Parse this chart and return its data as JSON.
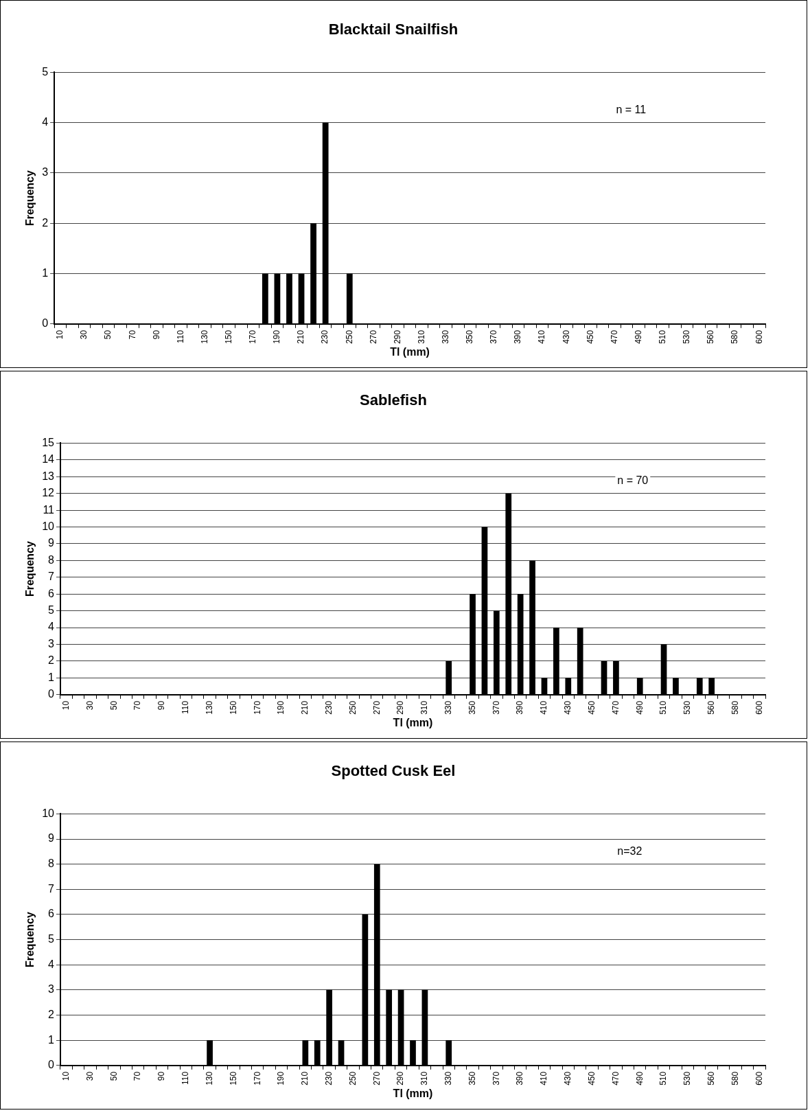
{
  "chart_data": [
    {
      "type": "bar",
      "title": "Blacktail Snailfish",
      "xlabel": "Tl (mm)",
      "ylabel": "Frequency",
      "categories": [
        "10",
        null,
        "30",
        null,
        "50",
        null,
        "70",
        null,
        "90",
        null,
        "110",
        null,
        "130",
        null,
        "150",
        null,
        "170",
        null,
        "190",
        null,
        "210",
        null,
        "230",
        null,
        "250",
        null,
        "270",
        null,
        "290",
        null,
        "310",
        null,
        "330",
        null,
        "350",
        null,
        "370",
        null,
        "390",
        null,
        "410",
        null,
        "430",
        null,
        "450",
        null,
        "470",
        null,
        "490",
        null,
        "510",
        null,
        "530",
        null,
        "560",
        null,
        "580",
        null,
        "600"
      ],
      "values": [
        0,
        0,
        0,
        0,
        0,
        0,
        0,
        0,
        0,
        0,
        0,
        0,
        0,
        0,
        0,
        0,
        0,
        1,
        1,
        1,
        1,
        2,
        4,
        0,
        1,
        0,
        0,
        0,
        0,
        0,
        0,
        0,
        0,
        0,
        0,
        0,
        0,
        0,
        0,
        0,
        0,
        0,
        0,
        0,
        0,
        0,
        0,
        0,
        0,
        0,
        0,
        0,
        0,
        0,
        0,
        0,
        0,
        0,
        0
      ],
      "color": "#000000",
      "ylim": [
        0,
        5
      ],
      "yticks": [
        0,
        1,
        2,
        3,
        4,
        5
      ],
      "grid": "y",
      "annotations": [
        "n = 11"
      ]
    },
    {
      "type": "bar",
      "title": "Sablefish",
      "xlabel": "Tl (mm)",
      "ylabel": "Frequency",
      "categories": [
        "10",
        null,
        "30",
        null,
        "50",
        null,
        "70",
        null,
        "90",
        null,
        "110",
        null,
        "130",
        null,
        "150",
        null,
        "170",
        null,
        "190",
        null,
        "210",
        null,
        "230",
        null,
        "250",
        null,
        "270",
        null,
        "290",
        null,
        "310",
        null,
        "330",
        null,
        "350",
        null,
        "370",
        null,
        "390",
        null,
        "410",
        null,
        "430",
        null,
        "450",
        null,
        "470",
        null,
        "490",
        null,
        "510",
        null,
        "530",
        null,
        "560",
        null,
        "580",
        null,
        "600"
      ],
      "values": [
        0,
        0,
        0,
        0,
        0,
        0,
        0,
        0,
        0,
        0,
        0,
        0,
        0,
        0,
        0,
        0,
        0,
        0,
        0,
        0,
        0,
        0,
        0,
        0,
        0,
        0,
        0,
        0,
        0,
        0,
        0,
        0,
        2,
        0,
        6,
        10,
        5,
        12,
        6,
        8,
        1,
        4,
        1,
        4,
        0,
        2,
        2,
        0,
        1,
        0,
        3,
        1,
        0,
        1,
        1,
        0,
        0,
        0,
        0
      ],
      "color": "#000000",
      "ylim": [
        0,
        15
      ],
      "yticks": [
        0,
        1,
        2,
        3,
        4,
        5,
        6,
        7,
        8,
        9,
        10,
        11,
        12,
        13,
        14,
        15
      ],
      "grid": "y",
      "annotations": [
        "n = 70"
      ]
    },
    {
      "type": "bar",
      "title": "Spotted Cusk Eel",
      "xlabel": "Tl (mm)",
      "ylabel": "Frequency",
      "categories": [
        "10",
        null,
        "30",
        null,
        "50",
        null,
        "70",
        null,
        "90",
        null,
        "110",
        null,
        "130",
        null,
        "150",
        null,
        "170",
        null,
        "190",
        null,
        "210",
        null,
        "230",
        null,
        "250",
        null,
        "270",
        null,
        "290",
        null,
        "310",
        null,
        "330",
        null,
        "350",
        null,
        "370",
        null,
        "390",
        null,
        "410",
        null,
        "430",
        null,
        "450",
        null,
        "470",
        null,
        "490",
        null,
        "510",
        null,
        "530",
        null,
        "560",
        null,
        "580",
        null,
        "600"
      ],
      "values": [
        0,
        0,
        0,
        0,
        0,
        0,
        0,
        0,
        0,
        0,
        0,
        0,
        1,
        0,
        0,
        0,
        0,
        0,
        0,
        0,
        1,
        1,
        3,
        1,
        0,
        6,
        8,
        3,
        3,
        1,
        3,
        0,
        1,
        0,
        0,
        0,
        0,
        0,
        0,
        0,
        0,
        0,
        0,
        0,
        0,
        0,
        0,
        0,
        0,
        0,
        0,
        0,
        0,
        0,
        0,
        0,
        0,
        0,
        0
      ],
      "color": "#000000",
      "ylim": [
        0,
        10
      ],
      "yticks": [
        0,
        1,
        2,
        3,
        4,
        5,
        6,
        7,
        8,
        9,
        10
      ],
      "grid": "y",
      "annotations": [
        "n=32"
      ]
    }
  ]
}
